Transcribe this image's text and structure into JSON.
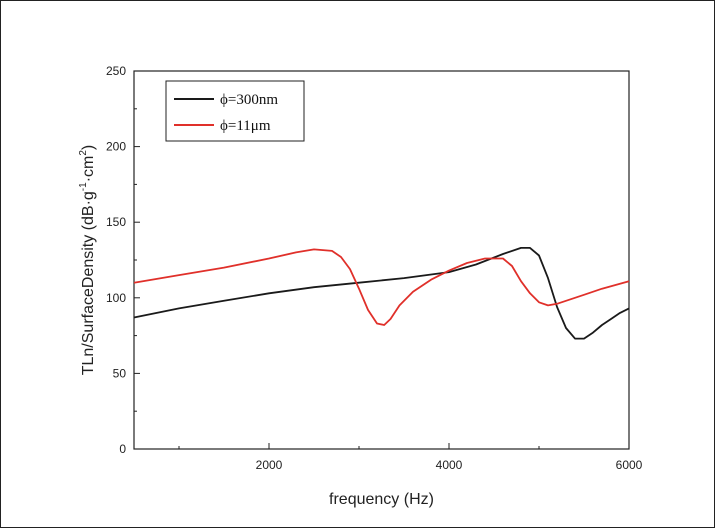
{
  "chart_data": {
    "type": "line",
    "title": "",
    "xlabel": "frequency (Hz)",
    "ylabel_parts": {
      "main": "TLn/SurfaceDensity (dB·g",
      "exp1": "-1",
      "mid": "·cm",
      "exp2": "2",
      "end": ")"
    },
    "xlim": [
      500,
      6000
    ],
    "ylim": [
      0,
      250
    ],
    "xticks": [
      2000,
      4000,
      6000
    ],
    "yticks": [
      0,
      50,
      100,
      150,
      200,
      250
    ],
    "grid": false,
    "legend_position": "top-left",
    "series": [
      {
        "name": "ϕ=300nm",
        "color": "#1a1a1a",
        "x": [
          500,
          1000,
          1500,
          2000,
          2500,
          3000,
          3500,
          4000,
          4300,
          4600,
          4800,
          4900,
          5000,
          5100,
          5200,
          5300,
          5400,
          5500,
          5600,
          5700,
          5800,
          5900,
          6000
        ],
        "y": [
          87,
          93,
          98,
          103,
          107,
          110,
          113,
          117,
          122,
          129,
          133,
          133,
          128,
          113,
          94,
          80,
          73,
          73,
          77,
          82,
          86,
          90,
          93
        ]
      },
      {
        "name": "ϕ=11μm",
        "color": "#e0302a",
        "x": [
          500,
          1000,
          1500,
          2000,
          2300,
          2500,
          2700,
          2800,
          2900,
          3000,
          3100,
          3200,
          3280,
          3350,
          3450,
          3600,
          3800,
          4000,
          4200,
          4400,
          4600,
          4700,
          4800,
          4900,
          5000,
          5100,
          5200,
          5300,
          5500,
          5700,
          6000
        ],
        "y": [
          110,
          115,
          120,
          126,
          130,
          132,
          131,
          127,
          119,
          106,
          92,
          83,
          82,
          86,
          95,
          104,
          112,
          118,
          123,
          126,
          126,
          121,
          111,
          103,
          97,
          95,
          96,
          98,
          102,
          106,
          111
        ]
      }
    ]
  }
}
